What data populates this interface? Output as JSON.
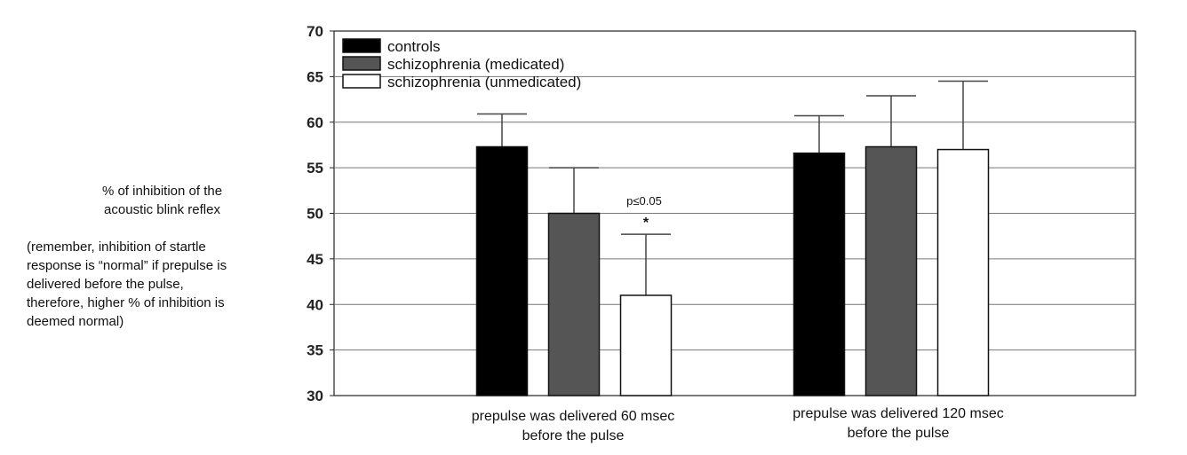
{
  "chart_data": {
    "type": "bar",
    "categories": [
      "prepulse was delivered 60 msec\nbefore the pulse",
      "prepulse was delivered 120 msec\nbefore the pulse"
    ],
    "series": [
      {
        "name": "controls",
        "values": [
          57.3,
          56.6
        ],
        "error": [
          3.6,
          4.1
        ],
        "color": "#000000"
      },
      {
        "name": "schizophrenia (medicated)",
        "values": [
          50.0,
          57.3
        ],
        "error": [
          5.0,
          5.6
        ],
        "color": "#555555"
      },
      {
        "name": "schizophrenia (unmedicated)",
        "values": [
          41.0,
          57.0
        ],
        "error": [
          6.7,
          7.5
        ],
        "color": "#ffffff"
      }
    ],
    "ylim": [
      30,
      70
    ],
    "yticks": [
      30,
      35,
      40,
      45,
      50,
      55,
      60,
      65,
      70
    ],
    "ylabel": "% of inhibition of the\nacoustic blink reflex",
    "ylabel_note": "(remember, inhibition of startle\nresponse is “normal” if prepulse is\ndelivered before the pulse,\ntherefore, higher % of inhibition is\ndeemed normal)",
    "annotation": {
      "text": "p≤0.05",
      "marker": "*",
      "category": 0,
      "series": 2
    },
    "legend_position": "top-left",
    "grid": true
  }
}
